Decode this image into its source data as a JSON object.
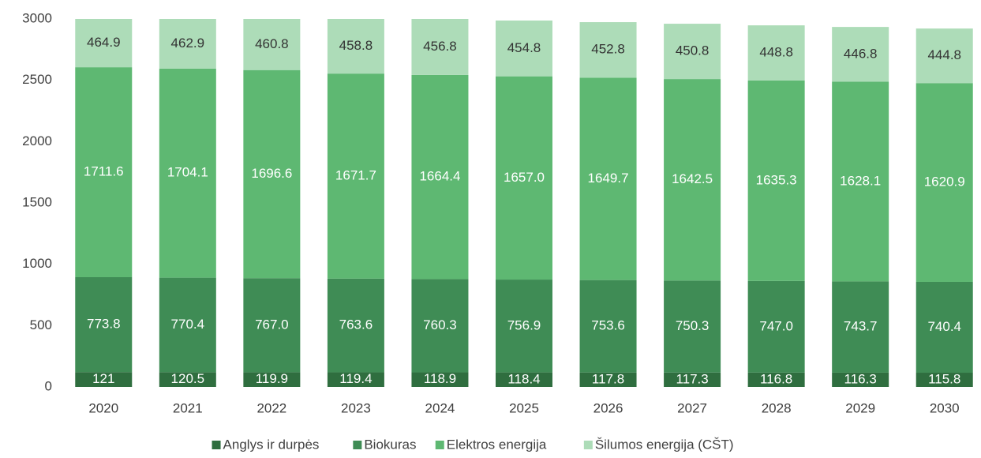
{
  "chart_data": {
    "type": "stacked_bar",
    "categories": [
      "2020",
      "2021",
      "2022",
      "2023",
      "2024",
      "2025",
      "2026",
      "2027",
      "2028",
      "2029",
      "2030"
    ],
    "series": [
      {
        "name": "Anglys ir durpės",
        "color": "#2f6e3f",
        "label_color": "#ffffff",
        "values": [
          121,
          120.5,
          119.9,
          119.4,
          118.9,
          118.4,
          117.8,
          117.3,
          116.8,
          116.3,
          115.8
        ],
        "value_labels": [
          "121",
          "120.5",
          "119.9",
          "119.4",
          "118.9",
          "118.4",
          "117.8",
          "117.3",
          "116.8",
          "116.3",
          "115.8"
        ]
      },
      {
        "name": "Biokuras",
        "color": "#3f8c55",
        "label_color": "#ffffff",
        "values": [
          773.8,
          770.4,
          767,
          763.6,
          760.3,
          756.9,
          753.6,
          750.3,
          747,
          743.7,
          740.4
        ],
        "value_labels": [
          "773.8",
          "770.4",
          "767.0",
          "763.6",
          "760.3",
          "756.9",
          "753.6",
          "750.3",
          "747.0",
          "743.7",
          "740.4"
        ]
      },
      {
        "name": "Elektros energija",
        "color": "#5eb872",
        "label_color": "#ffffff",
        "values": [
          1711.6,
          1704.1,
          1696.6,
          1671.7,
          1664.4,
          1657,
          1649.7,
          1642.5,
          1635.3,
          1628.1,
          1620.9
        ],
        "value_labels": [
          "1711.6",
          "1704.1",
          "1696.6",
          "1671.7",
          "1664.4",
          "1657.0",
          "1649.7",
          "1642.5",
          "1635.3",
          "1628.1",
          "1620.9"
        ]
      },
      {
        "name": "Šilumos energija (CŠT)",
        "color": "#addcb8",
        "label_color": "#333333",
        "values": [
          464.9,
          462.9,
          460.8,
          458.8,
          456.8,
          454.8,
          452.8,
          450.8,
          448.8,
          446.8,
          444.8
        ],
        "value_labels": [
          "464.9",
          "462.9",
          "460.8",
          "458.8",
          "456.8",
          "454.8",
          "452.8",
          "450.8",
          "448.8",
          "446.8",
          "444.8"
        ]
      }
    ],
    "ylim": [
      0,
      3000
    ],
    "yticks": [
      0,
      500,
      1000,
      1500,
      2000,
      2500,
      3000
    ],
    "grid": false,
    "legend": "bottom"
  }
}
